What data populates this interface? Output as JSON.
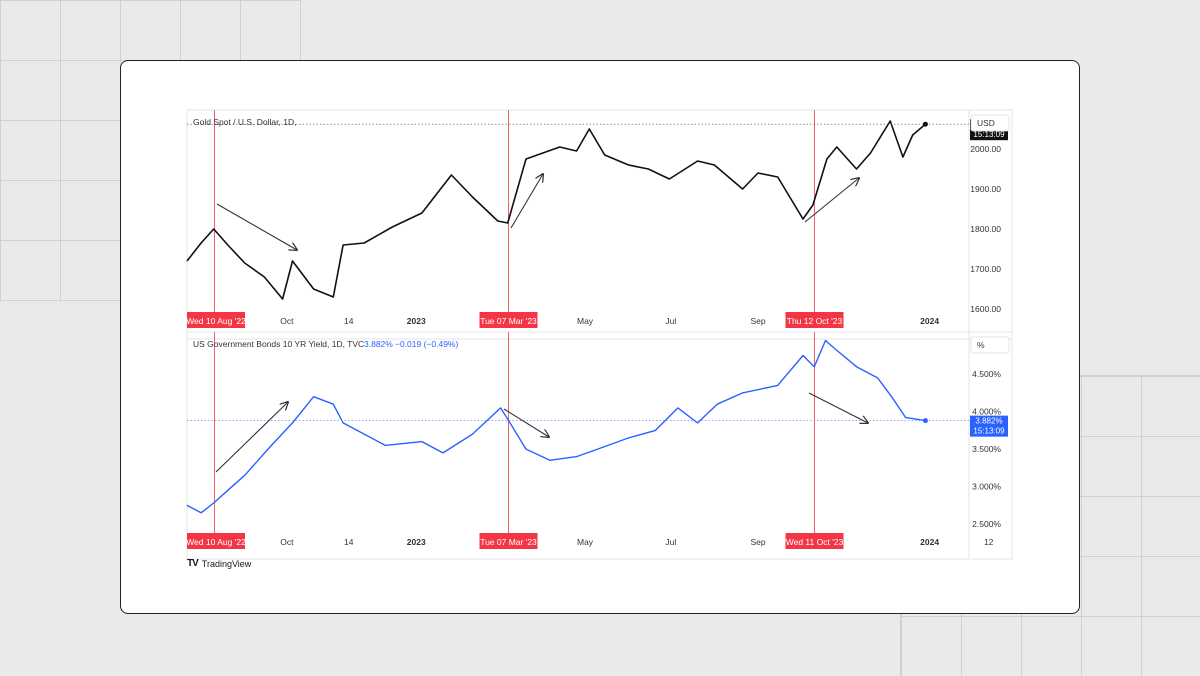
{
  "colors": {
    "gold": "#111111",
    "yield": "#2962ff",
    "marker": "#f23645",
    "axis_text": "#333333",
    "frame": "#e4e4e4"
  },
  "brand": {
    "name": "TradingView",
    "logo_text": "TV"
  },
  "chart_data": [
    {
      "type": "line",
      "title": "Gold Spot / U.S. Dollar, 1D,",
      "currency": "USD",
      "last_price_label": "2064.09",
      "timer": "15:13:09",
      "ylim": [
        1575,
        2095
      ],
      "yticks": [
        {
          "v": 2000,
          "label": "2000.00"
        },
        {
          "v": 1900,
          "label": "1900.00"
        },
        {
          "v": 1800,
          "label": "1800.00"
        },
        {
          "v": 1700,
          "label": "1700.00"
        },
        {
          "v": 1600,
          "label": "1600.00"
        }
      ],
      "xticks": [
        "Oct",
        "14",
        "2023",
        "May",
        "Jul",
        "Sep",
        "2024"
      ],
      "xtick_bold": [
        "2023",
        "2024"
      ],
      "markers": [
        "Wed 10 Aug '22",
        "Tue 07 Mar '23",
        "Thu 12 Oct '23"
      ],
      "series": [
        {
          "x": [
            "2022-07-22",
            "2022-08-01",
            "2022-08-10",
            "2022-08-20",
            "2022-09-01",
            "2022-09-15",
            "2022-09-28",
            "2022-10-05",
            "2022-10-20",
            "2022-11-03",
            "2022-11-10",
            "2022-11-25",
            "2022-12-15",
            "2023-01-05",
            "2023-01-26",
            "2023-02-10",
            "2023-02-28",
            "2023-03-07",
            "2023-03-20",
            "2023-04-13",
            "2023-04-25",
            "2023-05-04",
            "2023-05-15",
            "2023-06-01",
            "2023-06-15",
            "2023-06-30",
            "2023-07-20",
            "2023-08-01",
            "2023-08-21",
            "2023-09-01",
            "2023-09-15",
            "2023-10-03",
            "2023-10-10",
            "2023-10-20",
            "2023-10-27",
            "2023-11-10",
            "2023-11-20",
            "2023-12-04",
            "2023-12-13",
            "2023-12-20",
            "2023-12-29"
          ],
          "y": [
            1720,
            1765,
            1800,
            1760,
            1715,
            1680,
            1625,
            1720,
            1650,
            1630,
            1760,
            1765,
            1805,
            1840,
            1935,
            1880,
            1820,
            1815,
            1975,
            2005,
            1995,
            2050,
            1985,
            1960,
            1950,
            1925,
            1970,
            1960,
            1900,
            1940,
            1930,
            1825,
            1860,
            1975,
            2005,
            1950,
            1990,
            2070,
            1980,
            2035,
            2062
          ]
        }
      ]
    },
    {
      "type": "line",
      "title": "US Government Bonds 10 YR Yield, 1D, TVC",
      "value": "3.882%",
      "change": "−0.019 (−0.49%)",
      "unit": "%",
      "last_value_label": "3.882%",
      "timer": "15:13:09",
      "ylim": [
        2.3,
        5.05
      ],
      "yticks": [
        {
          "v": 4.5,
          "label": "4.500%"
        },
        {
          "v": 4.0,
          "label": "4.000%"
        },
        {
          "v": 3.5,
          "label": "3.500%"
        },
        {
          "v": 3.0,
          "label": "3.000%"
        },
        {
          "v": 2.5,
          "label": "2.500%"
        }
      ],
      "xticks": [
        "Oct",
        "14",
        "2023",
        "May",
        "Jul",
        "Sep",
        "2024",
        "12"
      ],
      "xtick_bold": [
        "2023",
        "2024"
      ],
      "markers": [
        "Wed 10 Aug '22",
        "Tue 07 Mar '23",
        "Wed 11 Oct '23"
      ],
      "series": [
        {
          "x": [
            "2022-07-22",
            "2022-08-01",
            "2022-08-10",
            "2022-08-20",
            "2022-09-01",
            "2022-09-20",
            "2022-10-05",
            "2022-10-20",
            "2022-11-03",
            "2022-11-10",
            "2022-11-25",
            "2022-12-10",
            "2023-01-05",
            "2023-01-20",
            "2023-02-10",
            "2023-03-02",
            "2023-03-07",
            "2023-03-20",
            "2023-04-06",
            "2023-04-25",
            "2023-05-10",
            "2023-06-01",
            "2023-06-20",
            "2023-07-06",
            "2023-07-20",
            "2023-08-03",
            "2023-08-21",
            "2023-09-15",
            "2023-10-03",
            "2023-10-11",
            "2023-10-19",
            "2023-10-25",
            "2023-11-10",
            "2023-11-25",
            "2023-12-05",
            "2023-12-15",
            "2023-12-29"
          ],
          "y": [
            2.75,
            2.65,
            2.78,
            2.95,
            3.15,
            3.55,
            3.85,
            4.2,
            4.1,
            3.85,
            3.7,
            3.55,
            3.6,
            3.45,
            3.7,
            4.05,
            3.9,
            3.5,
            3.35,
            3.4,
            3.5,
            3.65,
            3.75,
            4.05,
            3.85,
            4.1,
            4.25,
            4.35,
            4.75,
            4.6,
            4.95,
            4.85,
            4.6,
            4.45,
            4.2,
            3.92,
            3.88
          ]
        }
      ]
    }
  ]
}
